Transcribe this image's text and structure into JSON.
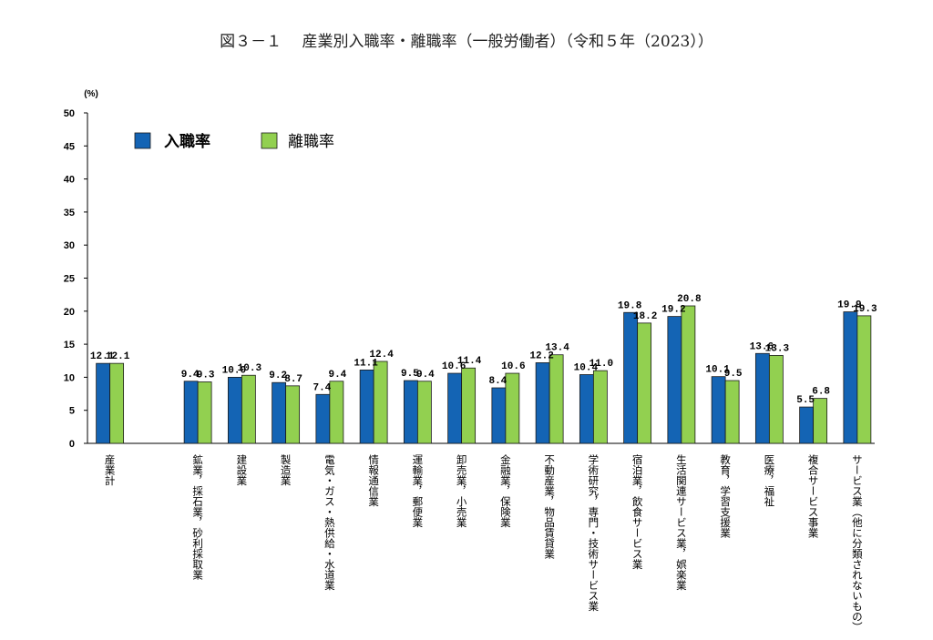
{
  "chart_data": {
    "type": "bar",
    "title": "図３－１　 産業別入職率・離職率（一般労働者）（令和５年（2023））",
    "ylabel": "(%)",
    "xlabel": "",
    "ylim": [
      0,
      50
    ],
    "yticks": [
      0,
      5,
      10,
      15,
      20,
      25,
      30,
      35,
      40,
      45,
      50
    ],
    "legend_position": "top-left",
    "categories": [
      "産業計",
      "",
      "鉱業，採石業，砂利採取業",
      "建設業",
      "製造業",
      "電気・ガス・熱供給・水道業",
      "情報通信業",
      "運輸業，郵便業",
      "卸売業，小売業",
      "金融業，保険業",
      "不動産業，物品賃貸業",
      "学術研究，専門・技術サービス業",
      "宿泊業，飲食サービス業",
      "生活関連サービス業，娯楽業",
      "教育，学習支援業",
      "医療，福祉",
      "複合サービス事業",
      "サービス業（他に分類されないもの）"
    ],
    "series": [
      {
        "name": "入職率",
        "color": "#1464B4",
        "values": [
          12.1,
          null,
          9.4,
          10.0,
          9.2,
          7.4,
          11.1,
          9.5,
          10.6,
          8.4,
          12.2,
          10.4,
          19.8,
          19.2,
          10.1,
          13.6,
          5.5,
          19.9
        ],
        "labels": [
          "12.1",
          "",
          "9.4",
          "10.0",
          "9.2",
          "7.4",
          "11.1",
          "9.5",
          "10.6",
          "8.4",
          "12.2",
          "10.4",
          "19.8",
          "19.2",
          "10.1",
          "13.6",
          "5.5",
          "19.9"
        ]
      },
      {
        "name": "離職率",
        "color": "#92D050",
        "values": [
          12.1,
          null,
          9.3,
          10.3,
          8.7,
          9.4,
          12.4,
          9.4,
          11.4,
          10.6,
          13.4,
          11.0,
          18.2,
          20.8,
          9.5,
          13.3,
          6.8,
          19.3
        ],
        "labels": [
          "12.1",
          "",
          "9.3",
          "10.3",
          "8.7",
          "9.4",
          "12.4",
          "9.4",
          "11.4",
          "10.6",
          "13.4",
          "11.0",
          "18.2",
          "20.8",
          "9.5",
          "13.3",
          "6.8",
          "19.3"
        ]
      }
    ]
  }
}
